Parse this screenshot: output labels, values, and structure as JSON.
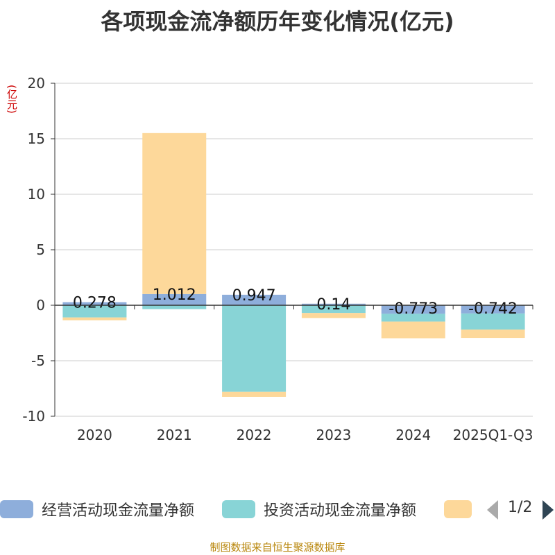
{
  "title": "各项现金流净额历年变化情况(亿元)",
  "unit": "(亿元)",
  "footer": "制图数据来自恒生聚源数据库",
  "pager": "1/2",
  "colors": {
    "operating": "#8eaedb",
    "investing": "#88d4d6",
    "financing": "#fdd89a",
    "grid": "#cccccc",
    "axis": "#333333"
  },
  "chart_data": {
    "type": "bar",
    "stacked": true,
    "categories": [
      "2020",
      "2021",
      "2022",
      "2023",
      "2024",
      "2025Q1-Q3"
    ],
    "ylim": [
      -10,
      20
    ],
    "yticks": [
      20,
      15,
      10,
      5,
      0,
      -5,
      -10
    ],
    "series": [
      {
        "name": "经营活动现金流量净额",
        "values": [
          0.278,
          1.012,
          0.947,
          0.14,
          -0.773,
          -0.742
        ]
      },
      {
        "name": "投资活动现金流量净额",
        "values": [
          -1.1,
          -0.35,
          -7.8,
          -0.7,
          -0.7,
          -1.45
        ]
      },
      {
        "name": "",
        "values": [
          -0.25,
          14.5,
          -0.45,
          -0.45,
          -1.5,
          -0.75
        ]
      }
    ],
    "data_labels": [
      "0.278",
      "1.012",
      "0.947",
      "0.14",
      "-0.773",
      "-0.742"
    ]
  }
}
